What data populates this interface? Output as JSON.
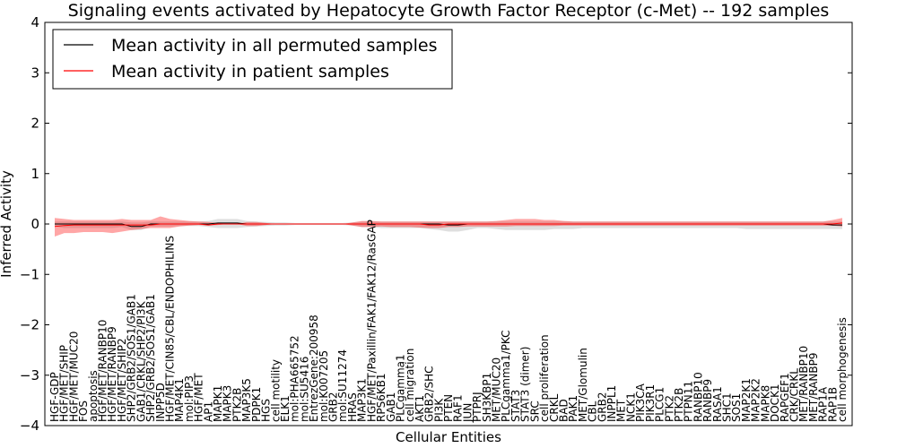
{
  "chart_data": {
    "type": "line",
    "title": "Signaling events activated by Hepatocyte Growth Factor Receptor (c-Met) -- 192 samples",
    "xlabel": "Cellular Entities",
    "ylabel": "Inferred Activity",
    "ylim": [
      -4,
      4
    ],
    "yticks": [
      4,
      3,
      2,
      1,
      0,
      -1,
      -2,
      -3,
      -4
    ],
    "ytick_labels": [
      "4",
      "3",
      "2",
      "1",
      "0",
      "−1",
      "−2",
      "−3",
      "−4"
    ],
    "legend": {
      "position": "top-left",
      "entries": [
        {
          "label": "Mean activity in all permuted samples",
          "color": "#000000"
        },
        {
          "label": "Mean activity in patient samples",
          "color": "#ff0000"
        }
      ]
    },
    "categories": [
      "HGF-GDP",
      "HGF/MET/SHIP",
      "HGF/MET/MUC20",
      "FOS",
      "apoptosis",
      "HGF/MET/RANBP10",
      "HGF/MET/RANBP9",
      "HGF/MET/SHIP2",
      "SHP2/GRB2/SOS1/GAB1",
      "GAB1/CRKL/SHP2/PI3K",
      "SHP2/GRB2/SOS1/GAB1",
      "INPP5D",
      "HGF/MET/CIN85/CBL/ENDOPHILINS",
      "MAP4K1",
      "mol:PIP3",
      "HGF/MET",
      "AP1",
      "MAPK1",
      "MAPK3",
      "PTK2B",
      "MAP3K5",
      "PDPK1",
      "HGS",
      "cell motility",
      "ELK1",
      "mol:PHA665752",
      "mol:SU5416",
      "EntrezGene:200958",
      "mol:K007205",
      "GRB2",
      "mol:SU11274",
      "HRAS",
      "MAP3K1",
      "HGF/MET/Paxillin/FAK1/FAK12/RasGAP",
      "RPS6KB1",
      "GAB1",
      "PLCgamma1",
      "cell migration",
      "AKT1",
      "GRB2/SHC",
      "PI3K",
      "PTEN",
      "RAF1",
      "JUN",
      "PTPRJ",
      "SH3KBP1",
      "MET/MUC20",
      "PLCgamma1/PKC",
      "STAT3",
      "STAT3 (dimer)",
      "SRC",
      "cell proliferation",
      "CRKL",
      "BAD",
      "PAK1",
      "MET/Glomulin",
      "CBL",
      "GRB2",
      "INPPL1",
      "MET",
      "NCK1",
      "PIK3CA",
      "PIK3R1",
      "PLCG1",
      "PTK2",
      "PTK2B",
      "PTPN11",
      "RANBP10",
      "RANBP9",
      "RASA1",
      "SHC1",
      "SOS1",
      "MAP2K1",
      "MAP2K2",
      "MAPK8",
      "DOCK1",
      "RAPGEF1",
      "CRK/CRKL",
      "MET/RANBP10",
      "MET/RANBP9",
      "RAP1A",
      "RAP1B",
      "cell morphogenesis"
    ],
    "series": [
      {
        "name": "Mean activity in all permuted samples",
        "color": "#000000",
        "values": [
          0,
          0,
          0,
          0,
          0,
          0,
          0,
          0,
          -0.05,
          -0.05,
          0,
          0,
          0,
          0,
          0,
          0,
          0,
          0.02,
          0.02,
          0.02,
          0,
          0,
          0,
          0,
          0,
          0,
          0,
          0,
          0,
          0,
          0,
          0,
          0,
          0,
          0,
          0,
          0,
          0,
          0,
          0,
          0,
          -0.02,
          -0.02,
          0,
          0,
          0,
          0,
          0,
          0,
          0,
          0,
          0,
          0,
          0,
          0,
          0,
          0,
          0,
          0,
          0,
          0,
          0,
          0,
          0,
          0,
          0,
          0,
          0,
          0,
          0,
          0,
          0,
          0,
          0,
          0,
          0,
          0,
          0,
          0,
          0,
          0,
          -0.02,
          -0.02
        ],
        "lower": [
          -0.05,
          -0.08,
          -0.08,
          -0.08,
          -0.08,
          -0.08,
          -0.08,
          -0.06,
          -0.12,
          -0.12,
          -0.05,
          -0.05,
          -0.05,
          -0.04,
          -0.04,
          -0.04,
          -0.06,
          -0.08,
          -0.08,
          -0.08,
          -0.06,
          -0.05,
          -0.04,
          -0.03,
          -0.03,
          -0.02,
          -0.02,
          -0.02,
          -0.02,
          -0.02,
          -0.02,
          -0.03,
          -0.06,
          -0.06,
          -0.08,
          -0.08,
          -0.08,
          -0.08,
          -0.08,
          -0.1,
          -0.12,
          -0.15,
          -0.15,
          -0.12,
          -0.08,
          -0.08,
          -0.1,
          -0.12,
          -0.12,
          -0.12,
          -0.12,
          -0.12,
          -0.1,
          -0.1,
          -0.1,
          -0.08,
          -0.08,
          -0.08,
          -0.08,
          -0.08,
          -0.08,
          -0.08,
          -0.08,
          -0.08,
          -0.08,
          -0.08,
          -0.08,
          -0.08,
          -0.08,
          -0.08,
          -0.08,
          -0.08,
          -0.1,
          -0.1,
          -0.1,
          -0.1,
          -0.1,
          -0.1,
          -0.1,
          -0.1,
          -0.1,
          -0.1,
          -0.1
        ],
        "upper": [
          0.05,
          0.05,
          0.05,
          0.05,
          0.05,
          0.05,
          0.05,
          0.05,
          0.03,
          0.03,
          0.05,
          0.05,
          0.05,
          0.05,
          0.05,
          0.05,
          0.06,
          0.1,
          0.1,
          0.1,
          0.06,
          0.05,
          0.04,
          0.03,
          0.03,
          0.02,
          0.02,
          0.02,
          0.02,
          0.02,
          0.02,
          0.03,
          0.05,
          0.05,
          0.05,
          0.05,
          0.05,
          0.05,
          0.05,
          0.05,
          0.05,
          0.05,
          0.05,
          0.05,
          0.05,
          0.05,
          0.05,
          0.05,
          0.05,
          0.05,
          0.05,
          0.05,
          0.05,
          0.05,
          0.05,
          0.05,
          0.05,
          0.05,
          0.05,
          0.05,
          0.05,
          0.05,
          0.05,
          0.05,
          0.05,
          0.05,
          0.05,
          0.05,
          0.05,
          0.05,
          0.05,
          0.05,
          0.05,
          0.05,
          0.05,
          0.05,
          0.05,
          0.05,
          0.05,
          0.05,
          0.05,
          0.05,
          0.05
        ]
      },
      {
        "name": "Mean activity in patient samples",
        "color": "#ff0000",
        "values": [
          -0.05,
          -0.03,
          -0.02,
          -0.02,
          -0.02,
          -0.02,
          -0.02,
          -0.02,
          -0.02,
          -0.02,
          -0.02,
          0,
          0,
          0,
          0,
          0,
          -0.02,
          0,
          0,
          0,
          0,
          0,
          0,
          0,
          0,
          0,
          0,
          0,
          0,
          0,
          0,
          0,
          0,
          0,
          0,
          0,
          0,
          0,
          0,
          -0.02,
          -0.02,
          0,
          0,
          0,
          0,
          0,
          0,
          0,
          0,
          0,
          0,
          0,
          0,
          0,
          0,
          0,
          0,
          0,
          0,
          0,
          0,
          0,
          0,
          0,
          0,
          0,
          0,
          0,
          0,
          0,
          0,
          0,
          0,
          0,
          0,
          0,
          0,
          0,
          0,
          0,
          0,
          0,
          0.02
        ],
        "lower": [
          -0.25,
          -0.18,
          -0.18,
          -0.16,
          -0.16,
          -0.16,
          -0.18,
          -0.15,
          -0.12,
          -0.1,
          -0.08,
          -0.08,
          -0.08,
          -0.05,
          -0.03,
          -0.02,
          -0.03,
          -0.02,
          0,
          0,
          -0.04,
          -0.04,
          -0.02,
          0,
          0,
          0,
          0,
          0,
          0,
          0,
          0,
          -0.03,
          -0.06,
          -0.06,
          -0.05,
          -0.06,
          -0.06,
          -0.06,
          -0.07,
          -0.08,
          -0.08,
          -0.06,
          -0.06,
          -0.05,
          -0.05,
          -0.05,
          -0.05,
          -0.05,
          -0.04,
          -0.04,
          -0.04,
          -0.04,
          -0.04,
          -0.03,
          -0.03,
          -0.03,
          -0.03,
          -0.03,
          -0.03,
          -0.03,
          -0.03,
          -0.03,
          -0.03,
          -0.03,
          -0.03,
          -0.03,
          -0.03,
          -0.03,
          -0.03,
          -0.03,
          -0.03,
          -0.03,
          -0.03,
          -0.03,
          -0.03,
          -0.03,
          -0.03,
          -0.03,
          -0.03,
          -0.03,
          -0.03,
          -0.03,
          -0.05
        ],
        "upper": [
          0.12,
          0.1,
          0.08,
          0.08,
          0.08,
          0.08,
          0.08,
          0.1,
          0.08,
          0.08,
          0.08,
          0.15,
          0.1,
          0.08,
          0.06,
          0.05,
          0.04,
          0.02,
          0,
          0,
          0.04,
          0.04,
          0.02,
          0,
          0,
          0,
          0,
          0,
          0,
          0,
          0,
          0.03,
          0.06,
          0.06,
          0.05,
          0.05,
          0.05,
          0.05,
          0.05,
          0.05,
          0.05,
          0.05,
          0.05,
          0.05,
          0.05,
          0.05,
          0.06,
          0.08,
          0.1,
          0.1,
          0.1,
          0.08,
          0.08,
          0.06,
          0.05,
          0.05,
          0.05,
          0.05,
          0.05,
          0.05,
          0.05,
          0.05,
          0.05,
          0.05,
          0.05,
          0.05,
          0.05,
          0.05,
          0.05,
          0.05,
          0.05,
          0.05,
          0.05,
          0.05,
          0.05,
          0.05,
          0.05,
          0.05,
          0.05,
          0.05,
          0.05,
          0.08,
          0.12
        ]
      }
    ]
  }
}
